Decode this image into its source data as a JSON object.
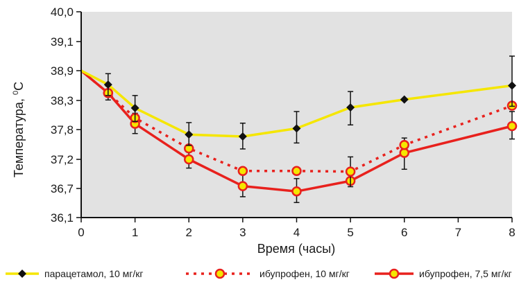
{
  "chart_data": {
    "type": "line",
    "xlabel": "Время (часы)",
    "ylabel": "Температура, ",
    "ylabel_unit": "C",
    "ylabel_unit_sup": "0",
    "x_ticks": [
      0,
      1,
      2,
      3,
      4,
      5,
      6,
      7,
      8
    ],
    "y_ticks": [
      36.1,
      36.7,
      37.2,
      37.8,
      38.3,
      38.9,
      39.1,
      40.0
    ],
    "y_tick_labels": [
      "36,1",
      "36,7",
      "37,2",
      "37,8",
      "38,3",
      "38,9",
      "39,1",
      "40,0"
    ],
    "xlim": [
      0,
      8
    ],
    "ylim": [
      36.1,
      40.0
    ],
    "grid": false,
    "legend_position": "bottom",
    "background_color": "#e2e2e2",
    "series": [
      {
        "name": "парацетамол, 10 мг/кг",
        "color": "#f5e600",
        "marker": "diamond",
        "line_style": "solid",
        "x": [
          0,
          0.5,
          1,
          2,
          3,
          4,
          5,
          6,
          8
        ],
        "y": [
          38.9,
          38.62,
          38.17,
          37.7,
          37.66,
          37.82,
          38.18,
          38.32,
          38.6
        ],
        "err": [
          0,
          0.22,
          0.23,
          0.22,
          0.25,
          0.29,
          0.3,
          0,
          0.4
        ]
      },
      {
        "name": "ибупрофен, 10 мг/кг",
        "color": "#e8211d",
        "marker": "circle",
        "line_style": "dotted",
        "x": [
          0,
          0.5,
          1,
          2,
          3,
          4,
          5,
          6,
          8
        ],
        "y": [
          38.9,
          38.45,
          38.0,
          37.42,
          37.0,
          37.0,
          36.99,
          37.49,
          38.21
        ],
        "err": [
          0,
          0,
          0,
          0,
          0,
          0,
          0.26,
          0,
          0
        ]
      },
      {
        "name": "ибупрофен, 7,5 мг/кг",
        "color": "#e8211d",
        "marker": "circle",
        "line_style": "solid",
        "x": [
          0,
          0.5,
          1,
          2,
          3,
          4,
          5,
          6,
          8
        ],
        "y": [
          38.9,
          38.45,
          37.9,
          37.2,
          36.74,
          36.64,
          36.83,
          37.33,
          37.86
        ],
        "err": [
          0,
          0.14,
          0.18,
          0.15,
          0.21,
          0.23,
          0,
          0.3,
          0.25
        ]
      }
    ]
  }
}
